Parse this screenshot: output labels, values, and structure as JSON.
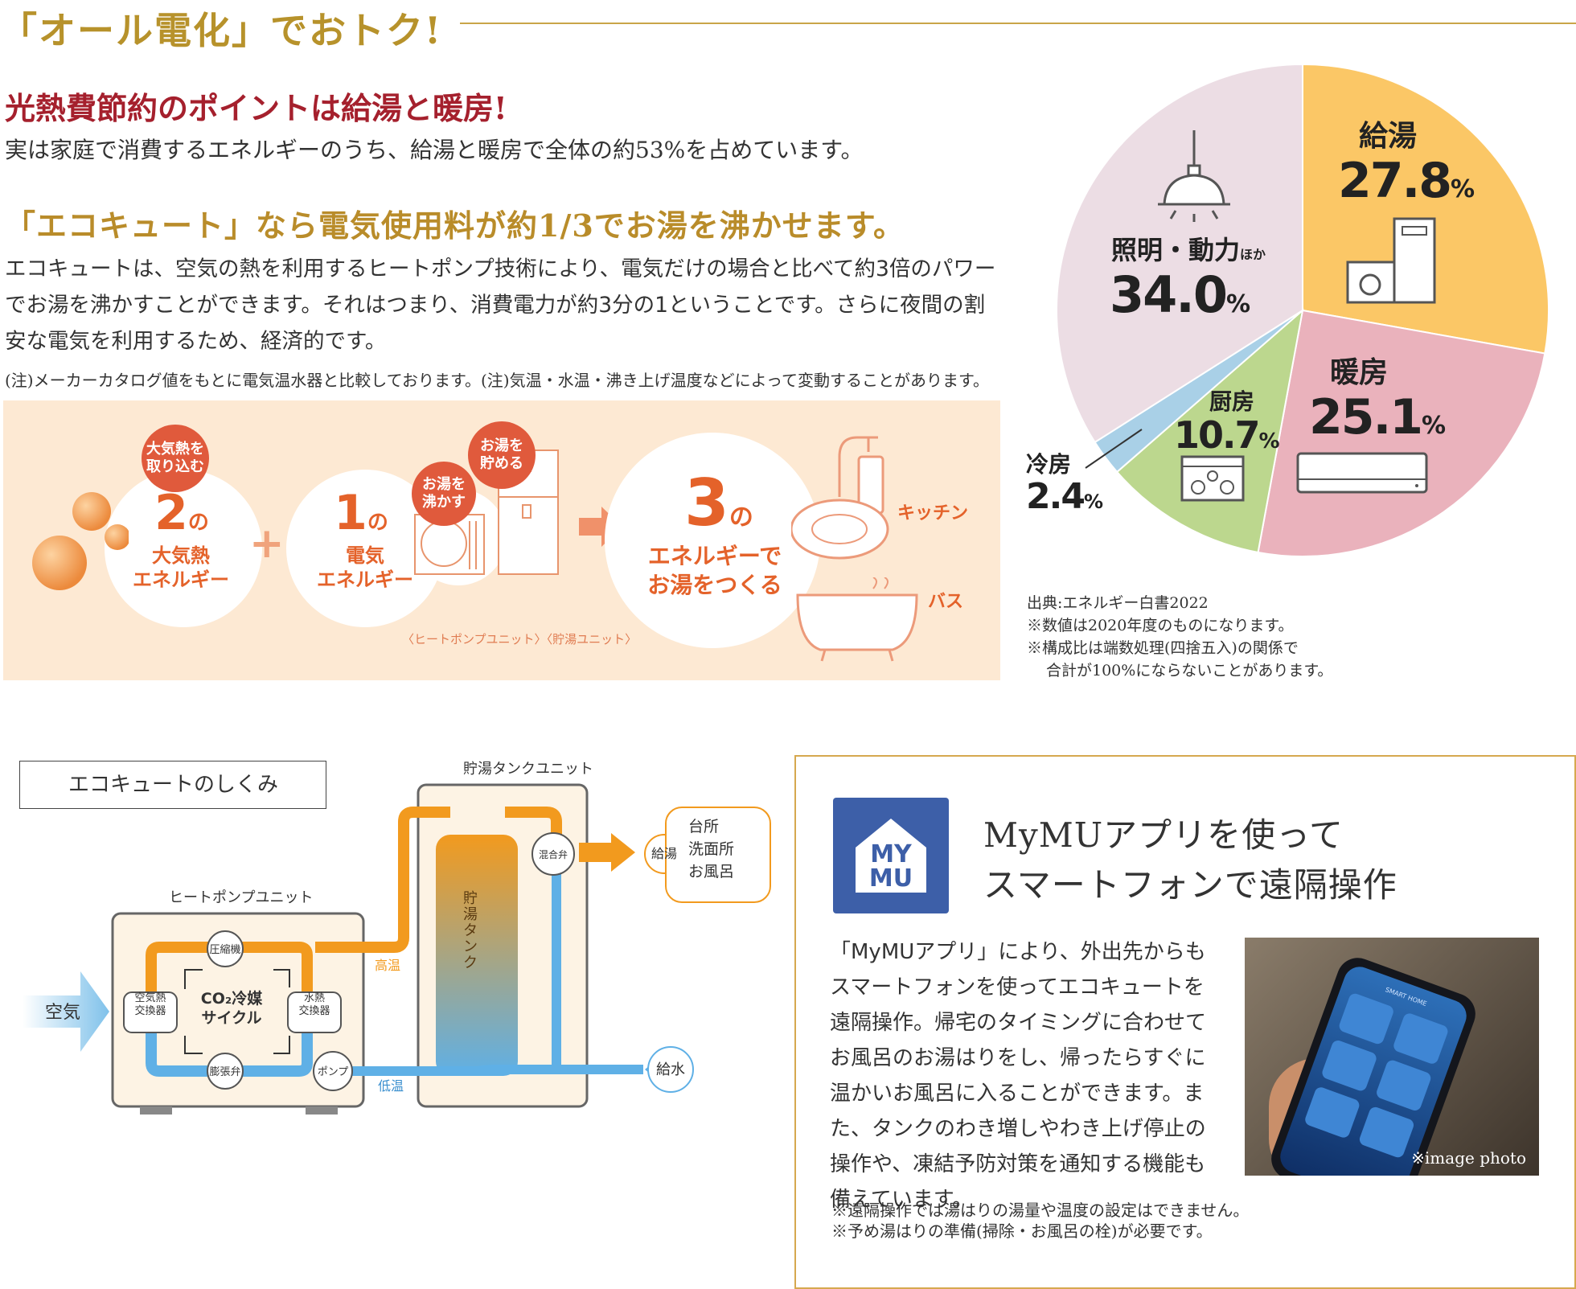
{
  "header": {
    "title": "「オール電化」でおトク!"
  },
  "intro": {
    "heading1": "光熱費節約のポイントは給湯と暖房!",
    "text1": "実は家庭で消費するエネルギーのうち、給湯と暖房で全体の約53%を占めています。",
    "heading2": "「エコキュート」なら電気使用料が約1/3でお湯を沸かせます。",
    "text2": "エコキュートは、空気の熱を利用するヒートポンプ技術により、電気だけの場合と比べて約3倍のパワーでお湯を沸かすことができます。それはつまり、消費電力が約3分の1ということです。さらに夜間の割安な電気を利用するため、経済的です。",
    "note": "(注)メーカーカタログ値をもとに電気温水器と比較しております。(注)気温・水温・沸き上げ温度などによって変動することがあります。"
  },
  "banner": {
    "badge_air": "大気熱を\n取り込む",
    "air_num": "2",
    "air_no": "の",
    "air_label": "大気熱\nエネルギー",
    "plus": "+",
    "elec_num": "1",
    "elec_no": "の",
    "elec_label": "電気\nエネルギー",
    "badge_boil": "お湯を\n沸かす",
    "badge_store": "お湯を\n貯める",
    "hp_unit": "〈ヒートポンプユニット〉",
    "tank_unit": "〈貯湯ユニット〉",
    "result_num": "3",
    "result_no": "の",
    "result_label": "エネルギーで\nお湯をつくる",
    "kitchen": "キッチン",
    "bath": "バス"
  },
  "chart_data": {
    "type": "pie",
    "slices": [
      {
        "label": "給湯",
        "value": 27.8,
        "color": "#fbc766"
      },
      {
        "label": "暖房",
        "value": 25.1,
        "color": "#eab2bc"
      },
      {
        "label": "厨房",
        "value": 10.7,
        "color": "#bcd78e"
      },
      {
        "label": "冷房",
        "value": 2.4,
        "color": "#a9d0e7"
      },
      {
        "label": "照明・動力ほか",
        "value": 34.0,
        "color": "#ecdde4"
      }
    ],
    "labels": {
      "kyuto": "給湯",
      "kyuto_val": "27.8",
      "danbo": "暖房",
      "danbo_val": "25.1",
      "chubo": "厨房",
      "chubo_val": "10.7",
      "reibo": "冷房",
      "reibo_val": "2.4",
      "shomei": "照明・動力",
      "shomei_suffix": "ほか",
      "shomei_val": "34.0",
      "pct": "%"
    }
  },
  "source": {
    "line1": "出典:エネルギー白書2022",
    "line2": "※数値は2020年度のものになります。",
    "line3": "※構成比は端数処理(四捨五入)の関係で",
    "line4": "合計が100%にならないことがあります。"
  },
  "system": {
    "box_title": "エコキュートのしくみ",
    "tank_unit_label": "貯湯タンクユニット",
    "hp_unit_label": "ヒートポンプユニット",
    "air": "空気",
    "compressor": "圧縮機",
    "air_hx": "空気熱\n交換器",
    "co2": "CO₂冷媒\nサイクル",
    "water_hx": "水熱\n交換器",
    "expansion": "膨張弁",
    "pump": "ポンプ",
    "hot": "高温",
    "cold": "低温",
    "tank": "貯湯タンク",
    "mixer": "混合弁",
    "supply_hot": "給湯",
    "destinations": "台所\n洗面所\nお風呂",
    "supply_water": "給水"
  },
  "mymu": {
    "logo_line1": "MY",
    "logo_line2": "MU",
    "title": "MyMUアプリを使って\nスマートフォンで遠隔操作",
    "body": "「MyMUアプリ」により、外出先からもスマートフォンを使ってエコキュートを遠隔操作。帰宅のタイミングに合わせてお風呂のお湯はりをし、帰ったらすぐに温かいお風呂に入ることができます。また、タンクのわき増しやわき上げ停止の操作や、凍結予防対策を通知する機能も備えています。",
    "photo_caption": "※image photo",
    "phone_header": "SMART HOME",
    "note1": "※遠隔操作では湯はりの湯量や温度の設定はできません。",
    "note2": "※予め湯はりの準備(掃除・お風呂の栓)が必要です。"
  }
}
